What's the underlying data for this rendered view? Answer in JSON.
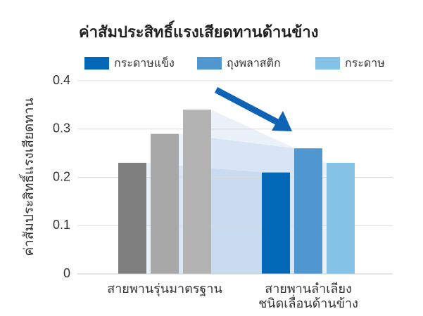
{
  "chart_data": {
    "type": "bar",
    "title": "ค่าสัมประสิทธิ์แรงเสียดทานด้านข้าง",
    "y_label": "ค่าสัมประสิทธิ์แรงเสียดทาน",
    "categories": [
      "สายพานรุ่นมาตรฐาน",
      "สายพานลำเลียง\nชนิดเลื่อนด้านข้าง"
    ],
    "series": [
      {
        "name": "กระดาษแข็ง",
        "color": "#0068b7",
        "values": [
          0.23,
          0.21
        ]
      },
      {
        "name": "ถุงพลาสติก",
        "color": "#5096cf",
        "values": [
          0.29,
          0.26
        ]
      },
      {
        "name": "กระดาษ",
        "color": "#84c2e6",
        "values": [
          0.34,
          0.23
        ]
      }
    ],
    "first_category_colors": [
      "#7f7f7f",
      "#a8a8a8",
      "#b3b3b3"
    ],
    "ylim": [
      0,
      0.4
    ],
    "yticks": [
      0,
      0.1,
      0.2,
      0.3,
      0.4
    ],
    "grid": true
  }
}
